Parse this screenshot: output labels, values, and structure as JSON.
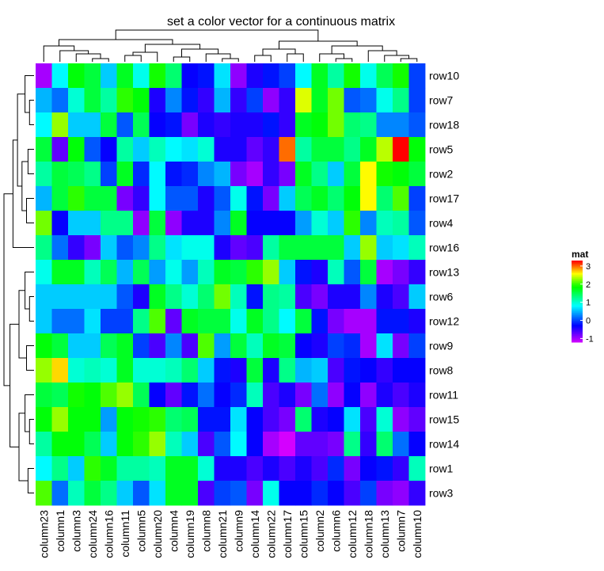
{
  "chart_data": {
    "type": "heatmap",
    "title": "set a color vector for a continuous matrix",
    "rows": [
      "row10",
      "row7",
      "row18",
      "row5",
      "row2",
      "row17",
      "row4",
      "row16",
      "row13",
      "row6",
      "row12",
      "row9",
      "row8",
      "row11",
      "row15",
      "row14",
      "row1",
      "row3"
    ],
    "columns": [
      "column23",
      "column1",
      "column3",
      "column24",
      "column16",
      "column11",
      "column5",
      "column20",
      "column4",
      "column19",
      "column8",
      "column21",
      "column9",
      "column14",
      "column22",
      "column17",
      "column15",
      "column2",
      "column6",
      "column12",
      "column18",
      "column13",
      "column7",
      "column10"
    ],
    "values": [
      [
        -1.0,
        0.8,
        1.8,
        1.6,
        0.6,
        1.7,
        0.9,
        1.9,
        1.4,
        -0.3,
        -0.2,
        0.7,
        -0.9,
        -0.4,
        -0.2,
        0.0,
        0.8,
        1.7,
        1.2,
        1.9,
        0.9,
        1.5,
        1.9,
        0.0
      ],
      [
        0.5,
        0.2,
        1.0,
        1.6,
        1.2,
        2.0,
        1.8,
        -0.4,
        0.3,
        -0.2,
        -0.5,
        0.5,
        -0.5,
        0.0,
        -0.9,
        -0.5,
        2.5,
        1.7,
        2.2,
        0.1,
        0.2,
        0.9,
        1.3,
        0.0
      ],
      [
        0.8,
        2.3,
        0.6,
        0.6,
        1.6,
        0.1,
        1.5,
        -0.3,
        -0.2,
        -0.8,
        -0.4,
        -0.5,
        -0.4,
        -0.4,
        -0.2,
        -0.5,
        1.7,
        1.8,
        2.2,
        1.4,
        1.3,
        0.3,
        0.3,
        0.1
      ],
      [
        1.6,
        -0.7,
        1.8,
        0.1,
        -0.3,
        1.2,
        0.6,
        1.1,
        0.8,
        0.7,
        1.0,
        -0.4,
        -0.4,
        -0.7,
        -0.5,
        3.0,
        1.2,
        1.6,
        1.6,
        1.3,
        1.7,
        2.4,
        3.3,
        1.8
      ],
      [
        1.2,
        1.6,
        1.5,
        1.3,
        0.0,
        1.7,
        -0.1,
        0.8,
        -0.2,
        -0.1,
        0.3,
        0.5,
        -0.8,
        -1.0,
        -0.5,
        -0.8,
        1.7,
        1.3,
        0.6,
        1.6,
        2.6,
        1.9,
        1.8,
        1.6
      ],
      [
        0.5,
        1.6,
        2.0,
        1.6,
        1.6,
        -0.8,
        -0.5,
        0.8,
        0.1,
        0.1,
        -0.4,
        0.1,
        0.9,
        -0.2,
        -0.8,
        0.6,
        1.5,
        1.7,
        1.4,
        1.8,
        2.6,
        1.4,
        2.1,
        0.0
      ],
      [
        2.2,
        -0.3,
        0.6,
        0.6,
        1.3,
        1.3,
        -0.9,
        1.6,
        -0.9,
        -0.4,
        -0.4,
        0.3,
        1.7,
        -0.3,
        -0.3,
        -0.3,
        0.4,
        1.0,
        0.6,
        2.0,
        0.3,
        1.1,
        1.2,
        0.1
      ],
      [
        1.3,
        0.2,
        -0.5,
        -0.8,
        0.6,
        0.1,
        0.3,
        1.3,
        0.7,
        0.9,
        0.9,
        -0.4,
        -0.7,
        -0.6,
        1.2,
        1.6,
        1.6,
        1.6,
        1.6,
        0.6,
        2.3,
        0.6,
        0.7,
        1.1
      ],
      [
        0.9,
        1.7,
        1.7,
        1.1,
        1.5,
        0.5,
        1.5,
        0.4,
        0.9,
        0.4,
        1.1,
        1.7,
        1.6,
        2.0,
        2.3,
        0.6,
        -0.2,
        -0.4,
        1.1,
        0.1,
        1.6,
        -1.0,
        -0.8,
        -0.5
      ],
      [
        0.6,
        0.6,
        0.6,
        0.6,
        0.6,
        0.1,
        -0.4,
        1.7,
        1.3,
        1.0,
        1.4,
        2.2,
        1.1,
        -0.2,
        1.3,
        1.2,
        -0.6,
        -0.8,
        -0.4,
        -0.4,
        0.3,
        -0.4,
        -0.6,
        0.6
      ],
      [
        0.6,
        0.2,
        0.2,
        0.7,
        0.0,
        0.0,
        1.3,
        2.1,
        -0.7,
        1.7,
        1.6,
        1.6,
        0.9,
        1.7,
        1.3,
        0.8,
        1.6,
        -0.2,
        -0.8,
        -1.0,
        -1.0,
        -0.2,
        -0.2,
        -0.4
      ],
      [
        1.8,
        1.6,
        0.6,
        0.6,
        1.5,
        1.7,
        0.0,
        -0.6,
        0.3,
        -0.6,
        2.1,
        0.4,
        1.6,
        1.1,
        1.7,
        1.6,
        -0.3,
        -0.4,
        0.0,
        -0.1,
        -1.0,
        0.7,
        -0.8,
        0.0
      ],
      [
        2.3,
        2.7,
        1.0,
        1.1,
        1.0,
        1.7,
        1.0,
        1.0,
        1.1,
        1.4,
        0.6,
        -0.2,
        -0.4,
        1.6,
        -0.4,
        1.3,
        0.5,
        0.6,
        -0.6,
        -0.2,
        -0.3,
        -0.5,
        -0.3,
        -0.3
      ],
      [
        1.6,
        1.5,
        1.9,
        1.8,
        2.1,
        2.3,
        1.5,
        -0.3,
        -0.7,
        -0.2,
        0.2,
        -0.3,
        -0.1,
        1.1,
        -0.6,
        -0.4,
        -0.8,
        0.2,
        -0.9,
        -0.3,
        -0.9,
        -0.4,
        -0.6,
        -0.4
      ],
      [
        1.8,
        2.3,
        1.8,
        1.8,
        0.4,
        1.8,
        1.9,
        2.0,
        1.4,
        1.5,
        -0.2,
        -0.2,
        0.7,
        -0.3,
        -0.6,
        -0.8,
        1.4,
        -0.4,
        -0.3,
        0.7,
        -0.6,
        1.0,
        -0.9,
        -0.7
      ],
      [
        1.2,
        1.8,
        1.8,
        1.5,
        0.6,
        1.8,
        2.0,
        2.3,
        1.1,
        0.6,
        -0.6,
        0.1,
        0.8,
        -0.3,
        -1.0,
        -1.2,
        -0.7,
        -0.7,
        -0.8,
        1.3,
        -0.5,
        1.4,
        0.2,
        -0.3
      ],
      [
        0.8,
        1.3,
        0.6,
        2.0,
        1.7,
        1.2,
        1.2,
        1.1,
        1.7,
        1.7,
        1.0,
        -0.4,
        -0.4,
        -0.6,
        -0.4,
        -0.6,
        -0.4,
        -0.6,
        -0.1,
        -0.8,
        -0.3,
        -0.2,
        -0.5,
        1.1
      ],
      [
        2.1,
        0.2,
        1.1,
        1.6,
        1.3,
        0.6,
        0.1,
        0.7,
        1.7,
        1.7,
        -0.6,
        0.0,
        0.1,
        -0.8,
        0.9,
        -0.3,
        -0.3,
        -0.1,
        -0.3,
        -0.6,
        0.0,
        -0.8,
        -0.9,
        -0.5
      ]
    ],
    "legend": {
      "title": "mat",
      "ticks": [
        3,
        2,
        1,
        0,
        -1
      ],
      "tick_labels": [
        "3",
        "2",
        "1",
        "0",
        "-1"
      ],
      "range": [
        -1.2,
        3.3
      ],
      "colors": [
        "#FF0000",
        "#00FF00",
        "#0000FF",
        "#FF00FF"
      ],
      "position": "right"
    }
  }
}
